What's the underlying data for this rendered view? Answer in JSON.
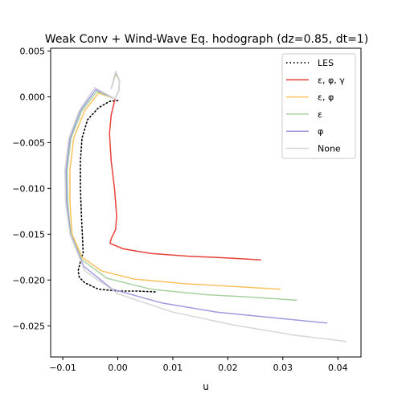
{
  "chart_data": {
    "type": "line",
    "title": "Weak Conv + Wind-Wave Eq. hodograph (dz=0.85, dt=1)",
    "xlabel": "u",
    "ylabel": "",
    "xlim": [
      -0.0122,
      0.0442
    ],
    "ylim": [
      -0.0284,
      0.0053
    ],
    "xticks": [
      -0.01,
      0.0,
      0.01,
      0.02,
      0.03,
      0.04
    ],
    "xtick_labels": [
      "−0.01",
      "0.00",
      "0.01",
      "0.02",
      "0.03",
      "0.04"
    ],
    "yticks": [
      0.005,
      0.0,
      -0.005,
      -0.01,
      -0.015,
      -0.02,
      -0.025
    ],
    "ytick_labels": [
      "0.005",
      "0.000",
      "−0.005",
      "−0.010",
      "−0.015",
      "−0.020",
      "−0.025"
    ],
    "grid": false,
    "legend": {
      "location": "top-right"
    },
    "series": [
      {
        "name": "LES",
        "color": "#000000",
        "style": "dotted",
        "points": [
          [
            0.0,
            -0.0004
          ],
          [
            -0.0015,
            -0.0005
          ],
          [
            -0.0035,
            -0.0012
          ],
          [
            -0.0055,
            -0.0025
          ],
          [
            -0.0065,
            -0.0045
          ],
          [
            -0.0068,
            -0.007
          ],
          [
            -0.0068,
            -0.01
          ],
          [
            -0.0066,
            -0.013
          ],
          [
            -0.0064,
            -0.0155
          ],
          [
            -0.0063,
            -0.017
          ],
          [
            -0.0068,
            -0.018
          ],
          [
            -0.0072,
            -0.019
          ],
          [
            -0.007,
            -0.0197
          ],
          [
            -0.006,
            -0.0203
          ],
          [
            -0.0035,
            -0.021
          ],
          [
            0.0,
            -0.0212
          ],
          [
            0.0035,
            -0.0212
          ],
          [
            0.007,
            -0.0213
          ]
        ]
      },
      {
        "name": "ε, φ, γ",
        "color": "#e8413a",
        "style": "solid",
        "points": [
          [
            0.0,
            0.0004
          ],
          [
            -0.0005,
            -0.0002
          ],
          [
            -0.0012,
            -0.002
          ],
          [
            -0.0015,
            -0.004
          ],
          [
            -0.0012,
            -0.007
          ],
          [
            -0.0006,
            -0.01
          ],
          [
            -0.0002,
            -0.013
          ],
          [
            -0.0004,
            -0.0145
          ],
          [
            -0.0012,
            -0.0155
          ],
          [
            -0.0014,
            -0.016
          ],
          [
            0.001,
            -0.0166
          ],
          [
            0.006,
            -0.0171
          ],
          [
            0.013,
            -0.0174
          ],
          [
            0.02,
            -0.0176
          ],
          [
            0.026,
            -0.0178
          ]
        ]
      },
      {
        "name": "ε, φ",
        "color": "#fbc15e",
        "style": "solid",
        "points": [
          [
            -0.0012,
            0.0009
          ],
          [
            -0.0004,
            0.0025
          ],
          [
            0.0003,
            0.0018
          ],
          [
            0.0002,
            0.0007
          ],
          [
            -0.0005,
            -0.0002
          ],
          [
            -0.0035,
            0.0004
          ],
          [
            -0.006,
            -0.0015
          ],
          [
            -0.008,
            -0.0045
          ],
          [
            -0.0087,
            -0.008
          ],
          [
            -0.0087,
            -0.0115
          ],
          [
            -0.0083,
            -0.015
          ],
          [
            -0.0065,
            -0.0175
          ],
          [
            -0.003,
            -0.019
          ],
          [
            0.003,
            -0.0199
          ],
          [
            0.012,
            -0.0204
          ],
          [
            0.021,
            -0.0207
          ],
          [
            0.0295,
            -0.021
          ]
        ]
      },
      {
        "name": "ε",
        "color": "#a8d19f",
        "style": "solid",
        "points": [
          [
            -0.0012,
            0.0009
          ],
          [
            -0.0004,
            0.0026
          ],
          [
            0.0003,
            0.0018
          ],
          [
            0.0002,
            0.0007
          ],
          [
            -0.0005,
            -0.0002
          ],
          [
            -0.0038,
            0.0006
          ],
          [
            -0.0065,
            -0.0015
          ],
          [
            -0.0085,
            -0.0045
          ],
          [
            -0.0092,
            -0.008
          ],
          [
            -0.0091,
            -0.0115
          ],
          [
            -0.0085,
            -0.015
          ],
          [
            -0.0065,
            -0.0178
          ],
          [
            -0.002,
            -0.0198
          ],
          [
            0.006,
            -0.021
          ],
          [
            0.016,
            -0.0216
          ],
          [
            0.025,
            -0.0219
          ],
          [
            0.0325,
            -0.0222
          ]
        ]
      },
      {
        "name": "φ",
        "color": "#9d9ae0",
        "style": "solid",
        "points": [
          [
            -0.0012,
            0.0009
          ],
          [
            -0.0004,
            0.0027
          ],
          [
            0.0003,
            0.0018
          ],
          [
            0.0002,
            0.0007
          ],
          [
            -0.0005,
            -0.0002
          ],
          [
            -0.004,
            0.0008
          ],
          [
            -0.0068,
            -0.0015
          ],
          [
            -0.0087,
            -0.0045
          ],
          [
            -0.0094,
            -0.008
          ],
          [
            -0.0093,
            -0.0115
          ],
          [
            -0.0086,
            -0.015
          ],
          [
            -0.0062,
            -0.0185
          ],
          [
            -0.001,
            -0.021
          ],
          [
            0.008,
            -0.0225
          ],
          [
            0.018,
            -0.0235
          ],
          [
            0.028,
            -0.0241
          ],
          [
            0.038,
            -0.0247
          ]
        ]
      },
      {
        "name": "None",
        "color": "#d6d6d6",
        "style": "solid",
        "points": [
          [
            -0.0012,
            0.0009
          ],
          [
            -0.0004,
            0.0028
          ],
          [
            0.0003,
            0.0018
          ],
          [
            0.0002,
            0.0007
          ],
          [
            -0.0005,
            -0.0002
          ],
          [
            -0.0042,
            0.001
          ],
          [
            -0.007,
            -0.0015
          ],
          [
            -0.0089,
            -0.0045
          ],
          [
            -0.0096,
            -0.008
          ],
          [
            -0.0095,
            -0.0115
          ],
          [
            -0.0087,
            -0.015
          ],
          [
            -0.006,
            -0.019
          ],
          [
            0.0,
            -0.0215
          ],
          [
            0.01,
            -0.0235
          ],
          [
            0.021,
            -0.0249
          ],
          [
            0.032,
            -0.026
          ],
          [
            0.0415,
            -0.0267
          ]
        ]
      }
    ]
  }
}
